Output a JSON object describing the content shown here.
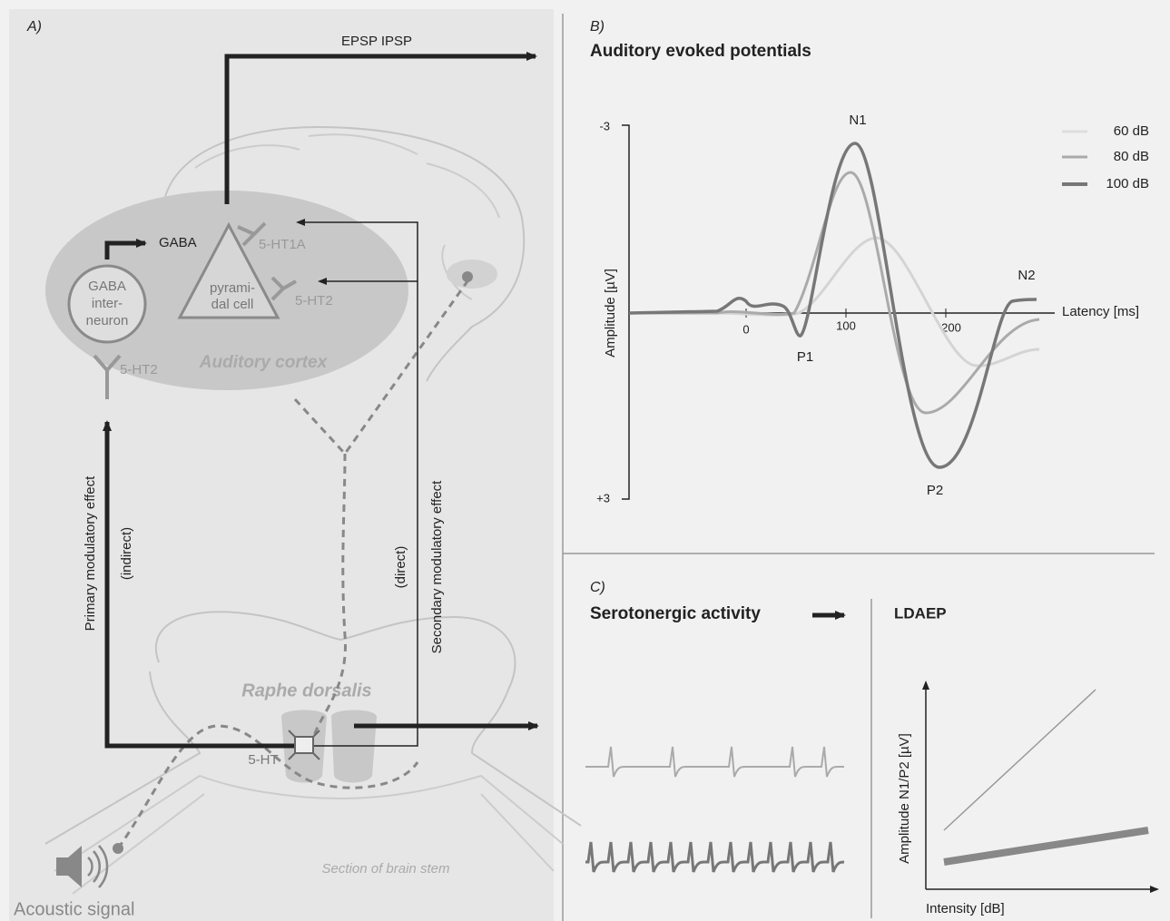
{
  "panel_a": {
    "label": "A)",
    "epsp_ipsp": "EPSP IPSP",
    "gaba": "GABA",
    "gaba_interneuron": [
      "GABA",
      "inter-",
      "neuron"
    ],
    "pyramidal_cell": [
      "pyrami-",
      "dal cell"
    ],
    "receptor_5ht1a": "5-HT1A",
    "receptor_5ht2_cortex": "5-HT2",
    "receptor_5ht2_interneuron": "5-HT2",
    "auditory_cortex": "Auditory cortex",
    "primary_effect": "Primary modulatory effect",
    "indirect": "(indirect)",
    "secondary_effect": "Secondary modulatory effect",
    "direct": "(direct)",
    "raphe": "Raphe dorsalis",
    "serotonin": "5-HT",
    "brain_stem": "Section of brain stem",
    "acoustic_signal": "Acoustic signal"
  },
  "panel_b": {
    "label": "B)",
    "title": "Auditory evoked potentials",
    "y_axis_label": "Amplitude [µV]",
    "x_axis_label": "Latency [ms]",
    "yticks": [
      "-3",
      "+3"
    ],
    "xticks": [
      "0",
      "100",
      "200"
    ],
    "peaks": [
      "N1",
      "P1",
      "N2",
      "P2"
    ],
    "legend": [
      "60 dB",
      "80 dB",
      "100 dB"
    ]
  },
  "panel_c": {
    "label": "C)",
    "title": "Serotonergic activity",
    "ldaep": "LDAEP",
    "y_axis_label": "Amplitude N1/P2 [µV]",
    "x_axis_label": "Intensity [dB]"
  }
}
